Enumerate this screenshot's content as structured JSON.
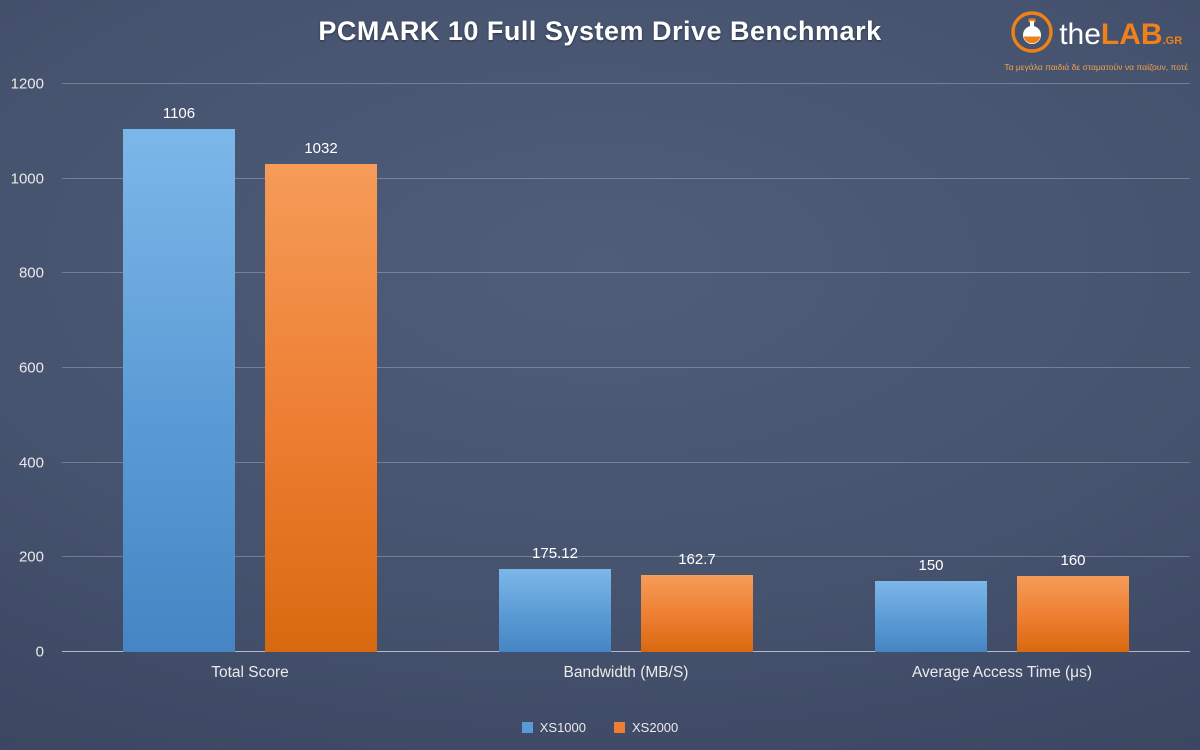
{
  "title": "PCMARK 10 Full System Drive Benchmark",
  "logo": {
    "the": "the",
    "lab": "LAB",
    "gr": ".GR",
    "tagline": "Τα μεγάλα παιδιά δε σταματούν να παίζουν, ποτέ"
  },
  "colors": {
    "background_center": "#4f5d7b",
    "background_edge": "#333d55",
    "gridline": "#8b93a6",
    "text": "#f2f2f2",
    "accent_orange": "#f08019"
  },
  "chart_data": {
    "type": "bar",
    "title": "PCMARK 10 Full System Drive Benchmark",
    "categories": [
      "Total Score",
      "Bandwidth (MB/S)",
      "Average Access Time (μs)"
    ],
    "series": [
      {
        "name": "XS1000",
        "color": "#5B9BD5",
        "color_light": "#7cb7e9",
        "color_dark": "#4585c4",
        "values": [
          1106,
          175.12,
          150
        ]
      },
      {
        "name": "XS2000",
        "color": "#ED7D31",
        "color_light": "#f59c58",
        "color_dark": "#d9690f",
        "values": [
          1032,
          162.7,
          160
        ]
      }
    ],
    "xlabel": "",
    "ylabel": "",
    "ylim": [
      0,
      1200
    ],
    "yticks": [
      0,
      200,
      400,
      600,
      800,
      1000,
      1200
    ],
    "grid": true,
    "legend_position": "bottom"
  }
}
